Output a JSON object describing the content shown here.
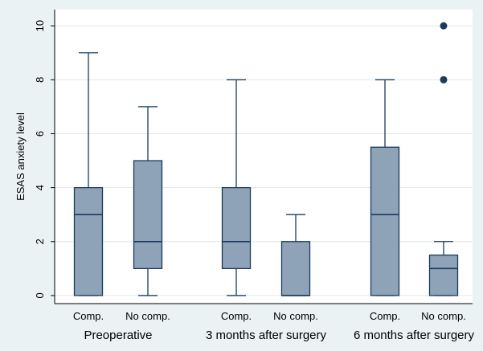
{
  "chart_data": {
    "type": "box",
    "title": "",
    "xlabel": "",
    "ylabel": "ESAS anxiety level",
    "ylim": [
      -0.3,
      10.6
    ],
    "yticks": [
      0,
      2,
      4,
      6,
      8,
      10
    ],
    "grid": true,
    "legend": "none",
    "colors": {
      "box_fill": "#8ea3b8",
      "box_stroke": "#1b3a5c",
      "outlier": "#1b3a5c",
      "grid": "#dfe7ea",
      "plot_bg": "#ffffff",
      "outer_bg": "#eaf2f3"
    },
    "groups": [
      {
        "label": "Preoperative",
        "boxes": [
          {
            "label": "Comp.",
            "min": 0,
            "q1": 0,
            "median": 3,
            "q3": 4,
            "max": 9,
            "outliers": []
          },
          {
            "label": "No comp.",
            "min": 0,
            "q1": 1,
            "median": 2,
            "q3": 5,
            "max": 7,
            "outliers": []
          }
        ]
      },
      {
        "label": "3 months after surgery",
        "boxes": [
          {
            "label": "Comp.",
            "min": 0,
            "q1": 1,
            "median": 2,
            "q3": 4,
            "max": 8,
            "outliers": []
          },
          {
            "label": "No comp.",
            "min": 0,
            "q1": 0,
            "median": 0,
            "q3": 2,
            "max": 3,
            "outliers": []
          }
        ]
      },
      {
        "label": "6 months after surgery",
        "boxes": [
          {
            "label": "Comp.",
            "min": 0,
            "q1": 0,
            "median": 3,
            "q3": 5.5,
            "max": 8,
            "outliers": []
          },
          {
            "label": "No comp.",
            "min": 0,
            "q1": 0,
            "median": 1,
            "q3": 1.5,
            "max": 2,
            "outliers": [
              8,
              10
            ]
          }
        ]
      }
    ]
  }
}
